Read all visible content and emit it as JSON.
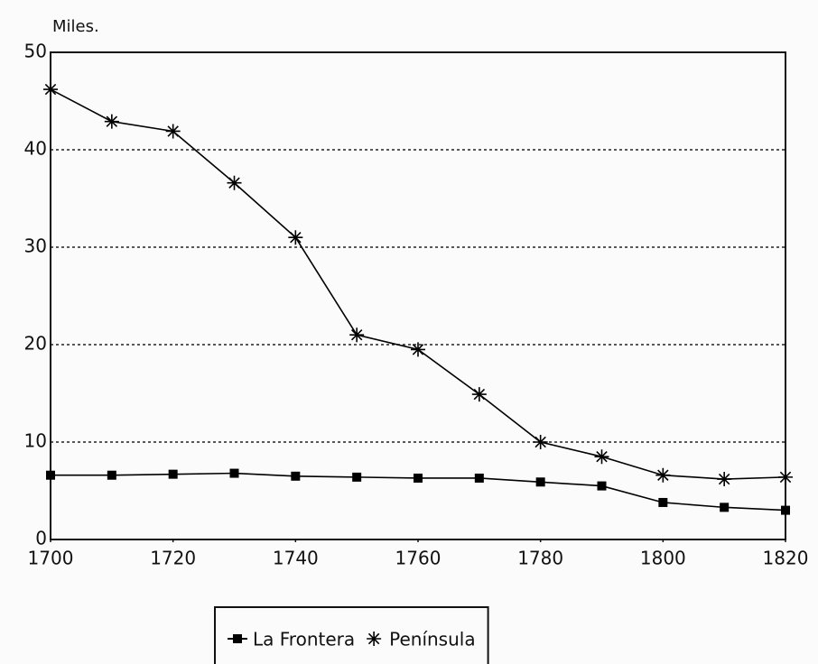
{
  "chart_data": {
    "type": "line",
    "y_axis_label": "Miles.",
    "x": [
      1700,
      1710,
      1720,
      1730,
      1740,
      1750,
      1760,
      1770,
      1780,
      1790,
      1800,
      1810,
      1820
    ],
    "series": [
      {
        "name": "La Frontera",
        "color": "#000000",
        "marker": "square",
        "values": [
          6.6,
          6.6,
          6.7,
          6.8,
          6.5,
          6.4,
          6.3,
          6.3,
          5.9,
          5.5,
          3.8,
          3.3,
          3.0
        ]
      },
      {
        "name": "Península",
        "color": "#000000",
        "marker": "asterisk",
        "values": [
          46.2,
          42.9,
          41.9,
          36.6,
          31.0,
          21.0,
          19.5,
          14.9,
          10.0,
          8.5,
          6.6,
          6.2,
          6.4
        ]
      }
    ],
    "xlim": [
      1700,
      1820
    ],
    "xticks": [
      1700,
      1720,
      1740,
      1760,
      1780,
      1800,
      1820
    ],
    "ylim": [
      0,
      50
    ],
    "yticks": [
      0,
      10,
      20,
      30,
      40,
      50
    ],
    "grid": true,
    "grid_style": "dotted",
    "legend": "bottom"
  }
}
